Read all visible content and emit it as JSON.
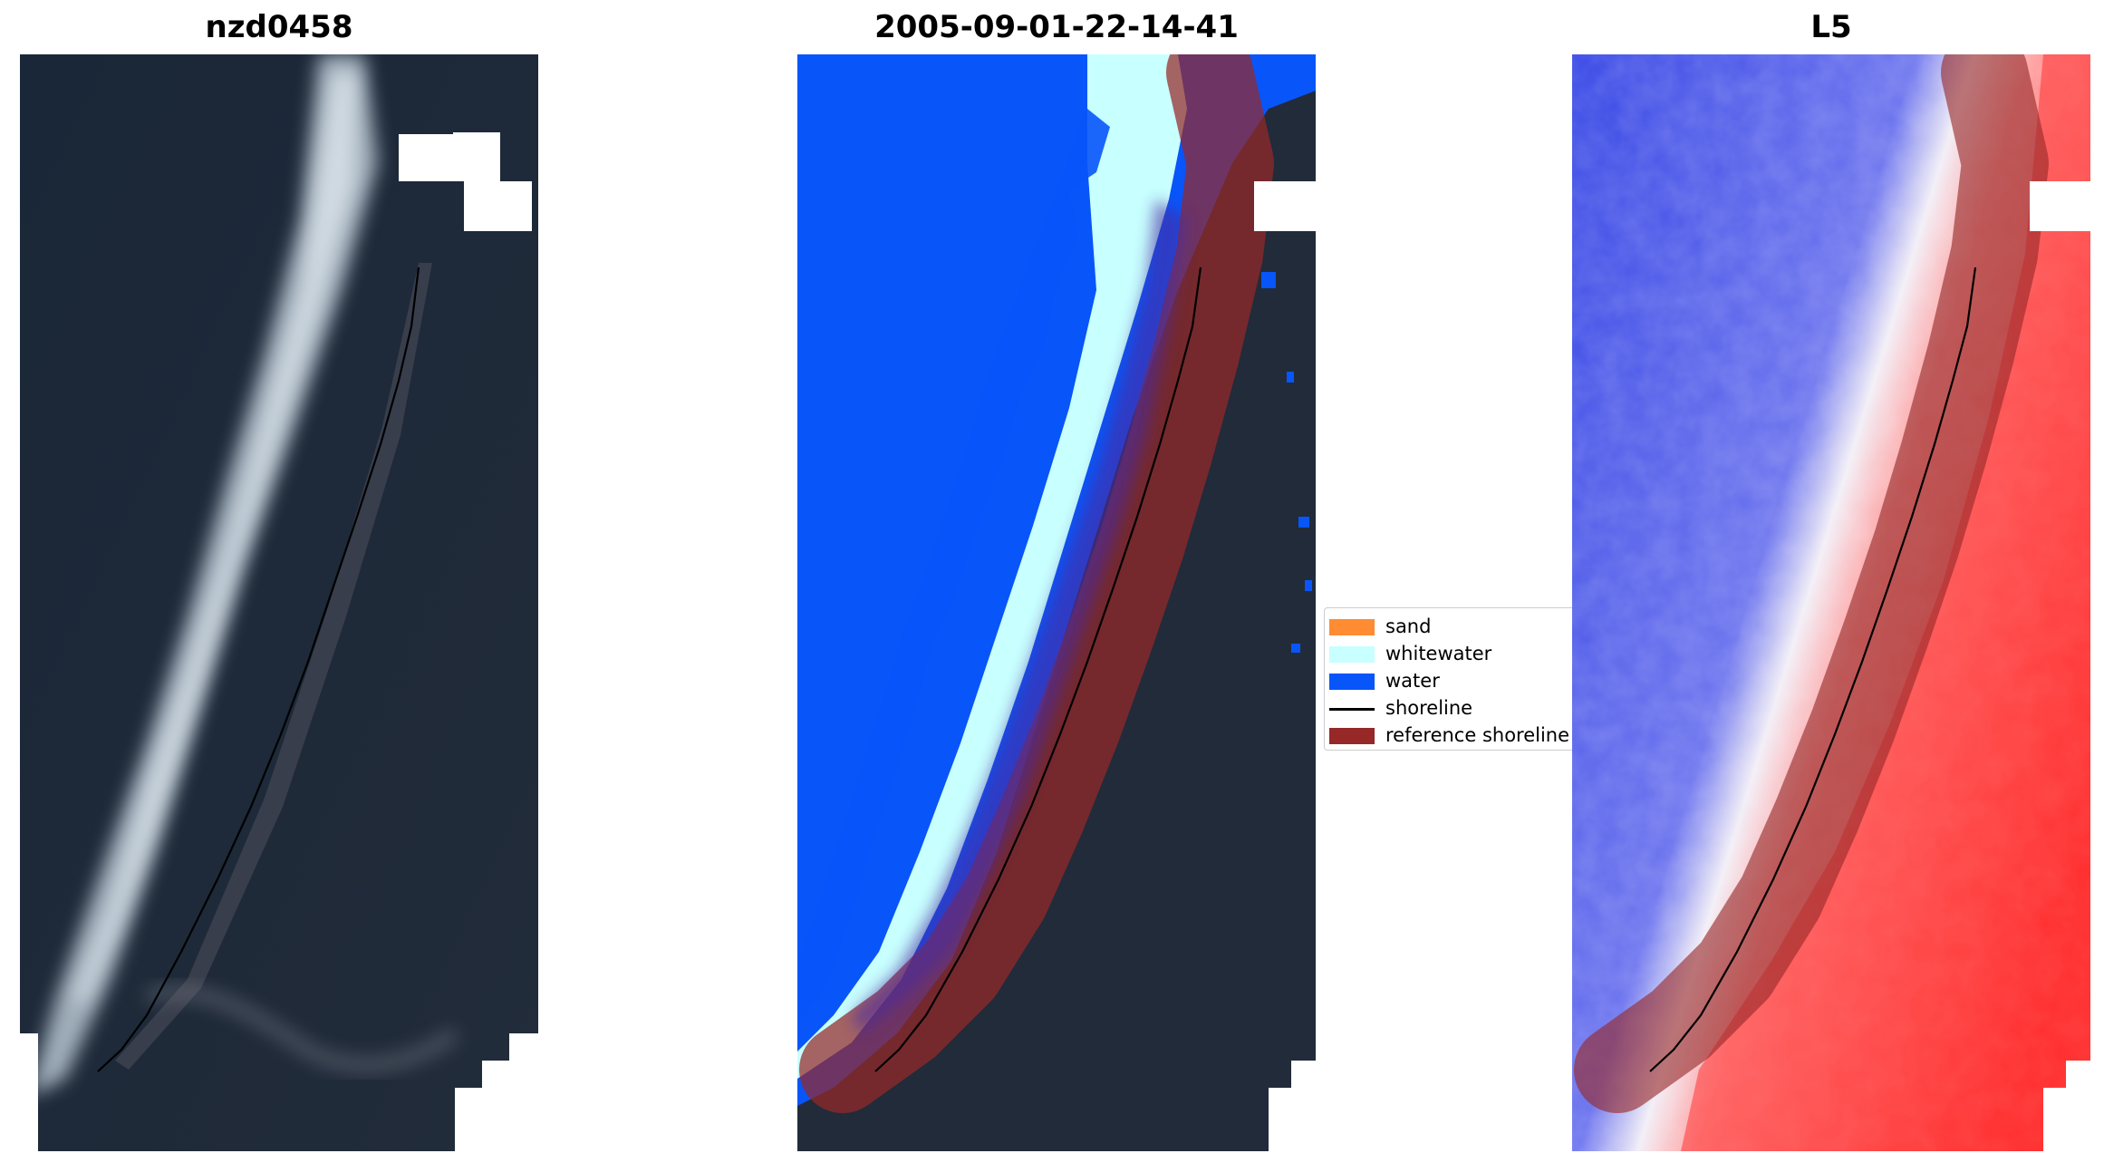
{
  "panels": {
    "left_title": "nzd0458",
    "middle_title": "2005-09-01-22-14-41",
    "right_title": "L5"
  },
  "legend": {
    "items": [
      {
        "label": "sand",
        "color": "#ff8c33",
        "kind": "patch"
      },
      {
        "label": "whitewater",
        "color": "#c8ffff",
        "kind": "patch"
      },
      {
        "label": "water",
        "color": "#0855fa",
        "kind": "patch"
      },
      {
        "label": "shoreline",
        "color": "#000000",
        "kind": "line"
      },
      {
        "label": "reference shoreline",
        "color": "#962828",
        "kind": "patch"
      }
    ]
  },
  "colors": {
    "sea_dark": "#1e2a3a",
    "water": "#0855fa",
    "whitewater": "#c8ffff",
    "reference_shoreline": "#962828",
    "index_blue": "#2f3fe0",
    "index_red": "#ff2020"
  }
}
